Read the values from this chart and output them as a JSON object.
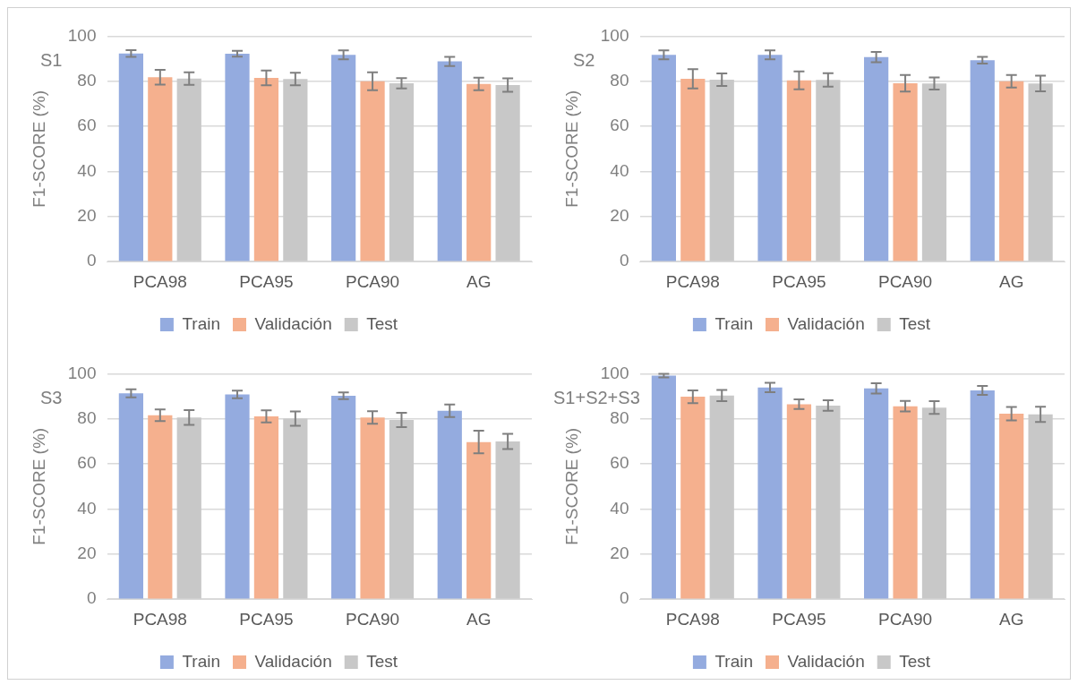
{
  "chart_data": [
    {
      "type": "bar",
      "title": "S1",
      "ylabel": "F1-SCORE (%)",
      "categories": [
        "PCA98",
        "PCA95",
        "PCA90",
        "AG"
      ],
      "ylim": [
        0,
        100
      ],
      "yticks": [
        0,
        20,
        40,
        60,
        80,
        100
      ],
      "grid": "y",
      "legend": "bottom",
      "series": [
        {
          "name": "Train",
          "color": "#94abdf",
          "values": [
            92.3,
            92.2,
            91.7,
            88.8
          ],
          "errors": [
            1.5,
            1.3,
            2,
            2
          ]
        },
        {
          "name": "Validación",
          "color": "#f5b08e",
          "values": [
            81.8,
            81.5,
            80,
            78.8
          ],
          "errors": [
            3.3,
            3.3,
            4,
            2.8
          ]
        },
        {
          "name": "Test",
          "color": "#c8c8c8",
          "values": [
            81.2,
            81,
            79.1,
            78.3
          ],
          "errors": [
            2.8,
            2.8,
            2.3,
            3
          ]
        }
      ]
    },
    {
      "type": "bar",
      "title": "S2",
      "ylabel": "F1-SCORE (%)",
      "categories": [
        "PCA98",
        "PCA95",
        "PCA90",
        "AG"
      ],
      "ylim": [
        0,
        100
      ],
      "yticks": [
        0,
        20,
        40,
        60,
        80,
        100
      ],
      "grid": "y",
      "legend": "bottom",
      "series": [
        {
          "name": "Train",
          "color": "#94abdf",
          "values": [
            91.7,
            91.7,
            90.7,
            89.3
          ],
          "errors": [
            2,
            2,
            2.3,
            1.5
          ]
        },
        {
          "name": "Validación",
          "color": "#f5b08e",
          "values": [
            81.1,
            80.4,
            79.1,
            80
          ],
          "errors": [
            4.3,
            4,
            3.7,
            2.8
          ]
        },
        {
          "name": "Test",
          "color": "#c8c8c8",
          "values": [
            80.7,
            80.6,
            79,
            79
          ],
          "errors": [
            2.8,
            3,
            2.7,
            3.5
          ]
        }
      ]
    },
    {
      "type": "bar",
      "title": "S3",
      "ylabel": "F1-SCORE (%)",
      "categories": [
        "PCA98",
        "PCA95",
        "PCA90",
        "AG"
      ],
      "ylim": [
        0,
        100
      ],
      "yticks": [
        0,
        20,
        40,
        60,
        80,
        100
      ],
      "grid": "y",
      "legend": "bottom",
      "series": [
        {
          "name": "Train",
          "color": "#94abdf",
          "values": [
            91.3,
            90.8,
            90.2,
            83.6
          ],
          "errors": [
            1.8,
            1.7,
            1.5,
            2.8
          ]
        },
        {
          "name": "Validación",
          "color": "#f5b08e",
          "values": [
            81.6,
            81.1,
            80.6,
            69.7
          ],
          "errors": [
            2.6,
            2.7,
            2.8,
            5
          ]
        },
        {
          "name": "Test",
          "color": "#c8c8c8",
          "values": [
            80.6,
            80.1,
            79.5,
            70
          ],
          "errors": [
            3.3,
            3.2,
            3.2,
            3.4
          ]
        }
      ]
    },
    {
      "type": "bar",
      "title": "S1+S2+S3",
      "ylabel": "F1-SCORE (%)",
      "categories": [
        "PCA98",
        "PCA95",
        "PCA90",
        "AG"
      ],
      "ylim": [
        0,
        100
      ],
      "yticks": [
        0,
        20,
        40,
        60,
        80,
        100
      ],
      "grid": "y",
      "legend": "bottom",
      "series": [
        {
          "name": "Train",
          "color": "#94abdf",
          "values": [
            99.2,
            93.9,
            93.5,
            92.6
          ],
          "errors": [
            0.8,
            2.1,
            2.3,
            2
          ]
        },
        {
          "name": "Validación",
          "color": "#f5b08e",
          "values": [
            89.8,
            86.5,
            85.6,
            82.3
          ],
          "errors": [
            2.8,
            2.1,
            2.3,
            3
          ]
        },
        {
          "name": "Test",
          "color": "#c8c8c8",
          "values": [
            90.3,
            85.9,
            85,
            82
          ],
          "errors": [
            2.5,
            2.3,
            2.8,
            3.4
          ]
        }
      ]
    }
  ]
}
